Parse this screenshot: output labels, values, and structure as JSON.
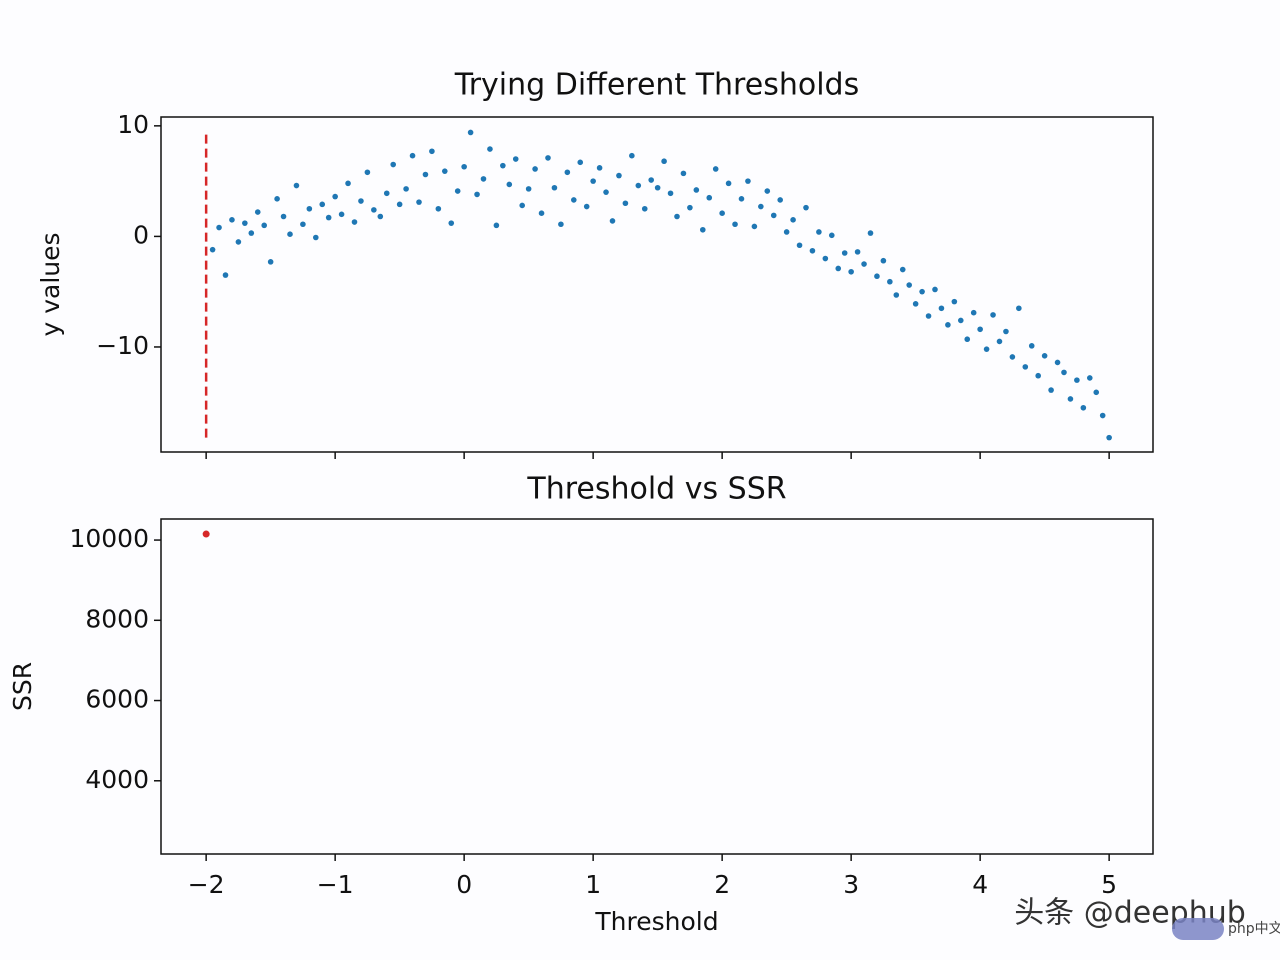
{
  "chart_data": [
    {
      "type": "scatter",
      "title": "Trying Different Thresholds",
      "ylabel": "y values",
      "color": "#1f77b4",
      "xlim": [
        -2.35,
        5.34
      ],
      "ylim": [
        -19.5,
        10.8
      ],
      "yticks": [
        10,
        0,
        {
          "value": -10,
          "label": "−10"
        }
      ],
      "vline": {
        "x": -2,
        "ymin": -18.2,
        "ymax": 9.6,
        "color": "#d62728",
        "style": "dashed"
      },
      "x": [
        -1.95,
        -1.9,
        -1.85,
        -1.8,
        -1.75,
        -1.7,
        -1.65,
        -1.6,
        -1.55,
        -1.5,
        -1.45,
        -1.4,
        -1.35,
        -1.3,
        -1.25,
        -1.2,
        -1.15,
        -1.1,
        -1.05,
        -1.0,
        -0.95,
        -0.9,
        -0.85,
        -0.8,
        -0.75,
        -0.7,
        -0.65,
        -0.6,
        -0.55,
        -0.5,
        -0.45,
        -0.4,
        -0.35,
        -0.3,
        -0.25,
        -0.2,
        -0.15,
        -0.1,
        -0.05,
        0.0,
        0.05,
        0.1,
        0.15,
        0.2,
        0.25,
        0.3,
        0.35,
        0.4,
        0.45,
        0.5,
        0.55,
        0.6,
        0.65,
        0.7,
        0.75,
        0.8,
        0.85,
        0.9,
        0.95,
        1.0,
        1.05,
        1.1,
        1.15,
        1.2,
        1.25,
        1.3,
        1.35,
        1.4,
        1.45,
        1.5,
        1.55,
        1.6,
        1.65,
        1.7,
        1.75,
        1.8,
        1.85,
        1.9,
        1.95,
        2.0,
        2.05,
        2.1,
        2.15,
        2.2,
        2.25,
        2.3,
        2.35,
        2.4,
        2.45,
        2.5,
        2.55,
        2.6,
        2.65,
        2.7,
        2.75,
        2.8,
        2.85,
        2.9,
        2.95,
        3.0,
        3.05,
        3.1,
        3.15,
        3.2,
        3.25,
        3.3,
        3.35,
        3.4,
        3.45,
        3.5,
        3.55,
        3.6,
        3.65,
        3.7,
        3.75,
        3.8,
        3.85,
        3.9,
        3.95,
        4.0,
        4.05,
        4.1,
        4.15,
        4.2,
        4.25,
        4.3,
        4.35,
        4.4,
        4.45,
        4.5,
        4.55,
        4.6,
        4.65,
        4.7,
        4.75,
        4.8,
        4.85,
        4.9,
        4.95,
        5.0
      ],
      "y": [
        -1.2,
        0.8,
        -3.5,
        1.5,
        -0.5,
        1.2,
        0.3,
        2.2,
        1.0,
        -2.3,
        3.4,
        1.8,
        0.2,
        4.6,
        1.1,
        2.5,
        -0.1,
        2.9,
        1.7,
        3.6,
        2.0,
        4.8,
        1.3,
        3.2,
        5.8,
        2.4,
        1.8,
        3.9,
        6.5,
        2.9,
        4.3,
        7.3,
        3.1,
        5.6,
        7.7,
        2.5,
        5.9,
        1.2,
        4.1,
        6.3,
        9.4,
        3.8,
        5.2,
        7.9,
        1.0,
        6.4,
        4.7,
        7.0,
        2.8,
        4.3,
        6.1,
        2.1,
        7.1,
        4.4,
        1.1,
        5.8,
        3.3,
        6.7,
        2.7,
        5.0,
        6.2,
        4.0,
        1.4,
        5.5,
        3.0,
        7.3,
        4.6,
        2.5,
        5.1,
        4.4,
        6.8,
        3.9,
        1.8,
        5.7,
        2.6,
        4.2,
        0.6,
        3.5,
        6.1,
        2.1,
        4.8,
        1.1,
        3.4,
        5.0,
        0.9,
        2.7,
        4.1,
        1.9,
        3.3,
        0.4,
        1.5,
        -0.8,
        2.6,
        -1.3,
        0.4,
        -2.0,
        0.1,
        -2.9,
        -1.5,
        -3.2,
        -1.4,
        -2.5,
        0.3,
        -3.6,
        -2.2,
        -4.1,
        -5.3,
        -3.0,
        -4.4,
        -6.1,
        -5.0,
        -7.2,
        -4.8,
        -6.5,
        -8.0,
        -5.9,
        -7.6,
        -9.3,
        -6.9,
        -8.4,
        -10.2,
        -7.1,
        -9.5,
        -8.6,
        -10.9,
        -6.5,
        -11.8,
        -9.9,
        -12.6,
        -10.8,
        -13.9,
        -11.4,
        -12.3,
        -14.7,
        -13.0,
        -15.5,
        -12.8,
        -14.1,
        -16.2,
        -18.2
      ]
    },
    {
      "type": "scatter",
      "title": "Threshold vs SSR",
      "xlabel": "Threshold",
      "ylabel": "SSR",
      "color": "#d62728",
      "xlim": [
        -2.35,
        5.34
      ],
      "ylim": [
        2175,
        10525
      ],
      "xticks": [
        {
          "value": -2,
          "label": "−2"
        },
        {
          "value": -1,
          "label": "−1"
        },
        0,
        1,
        2,
        3,
        4,
        5
      ],
      "yticks": [
        10000,
        8000,
        6000,
        4000
      ],
      "x": [
        -2
      ],
      "y": [
        10150
      ]
    }
  ],
  "watermark": "头条 @deephub",
  "badge": "php中文网"
}
